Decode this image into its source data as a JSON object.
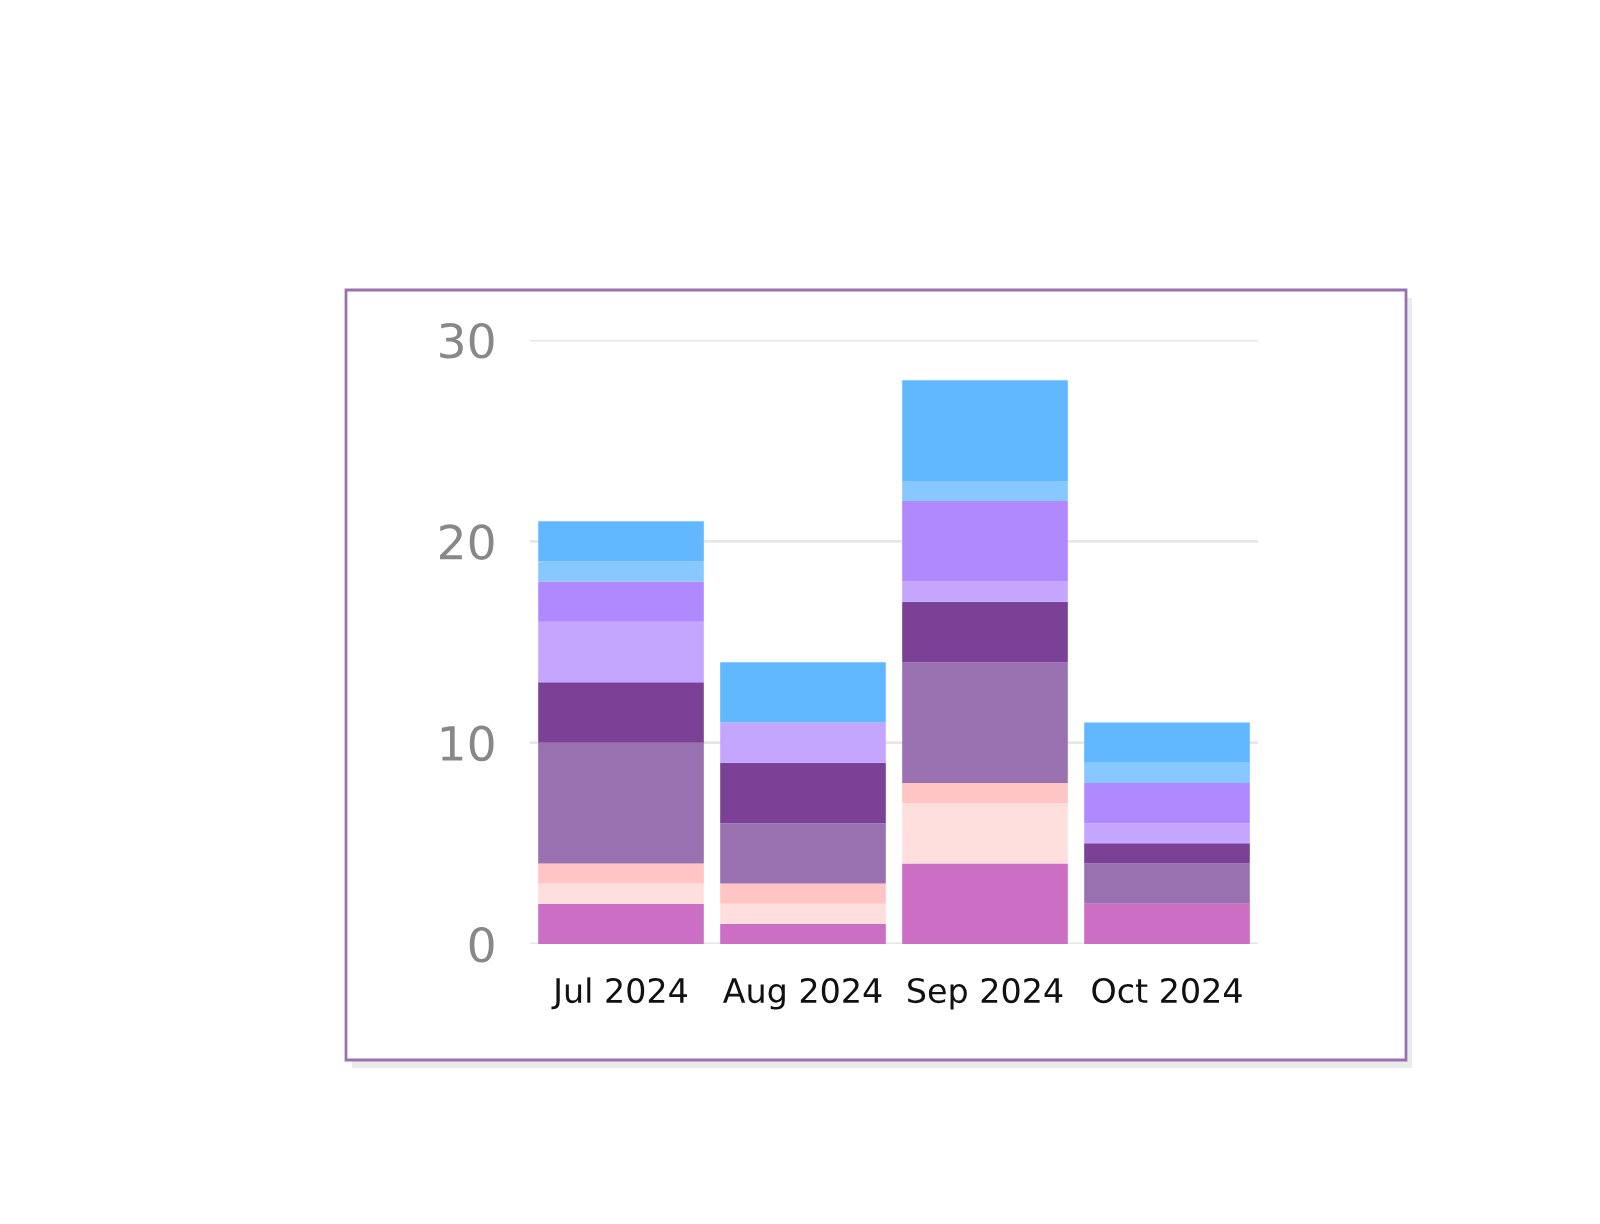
{
  "chart_data": {
    "type": "bar",
    "stacked": true,
    "categories": [
      "Jul 2024",
      "Aug 2024",
      "Sep 2024",
      "Oct 2024"
    ],
    "series": [
      {
        "color": "#cc6fc4",
        "values": [
          2,
          1,
          4,
          2
        ]
      },
      {
        "color": "#ffdede",
        "values": [
          1,
          1,
          3,
          0
        ]
      },
      {
        "color": "#ffc4c4",
        "values": [
          1,
          1,
          1,
          0
        ]
      },
      {
        "color": "#9a71b0",
        "values": [
          6,
          3,
          6,
          2
        ]
      },
      {
        "color": "#7a4196",
        "values": [
          3,
          3,
          3,
          1
        ]
      },
      {
        "color": "#c4a6ff",
        "values": [
          3,
          2,
          1,
          1
        ]
      },
      {
        "color": "#b088ff",
        "values": [
          2,
          0,
          4,
          2
        ]
      },
      {
        "color": "#86c8ff",
        "values": [
          1,
          0,
          1,
          1
        ]
      },
      {
        "color": "#62b8ff",
        "values": [
          2,
          3,
          5,
          2
        ]
      }
    ],
    "ylim": [
      0,
      30
    ],
    "yticks": [
      0,
      10,
      20,
      30
    ],
    "grid": "y",
    "legend": false
  }
}
